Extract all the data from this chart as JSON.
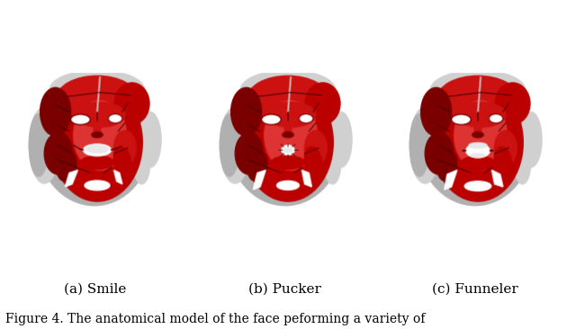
{
  "caption": "Figure 4. The anatomical model of the face peforming a variety of",
  "labels": [
    "(a) Smile",
    "(b) Pucker",
    "(c) Funneler"
  ],
  "background_color": "#ffffff",
  "label_fontsize": 11,
  "caption_fontsize": 10,
  "fig_width": 6.4,
  "fig_height": 3.66,
  "dpi": 100,
  "muscle_red_dark": "#7a0000",
  "muscle_red_main": "#bb0000",
  "muscle_red_mid": "#cc1111",
  "muscle_red_bright": "#dd3333",
  "skull_gray": "#b0b0b0",
  "skull_light": "#d0d0d0",
  "skull_dark": "#909090",
  "line_color": "#440000",
  "white": "#ffffff",
  "teeth_white": "#e8e8e8"
}
